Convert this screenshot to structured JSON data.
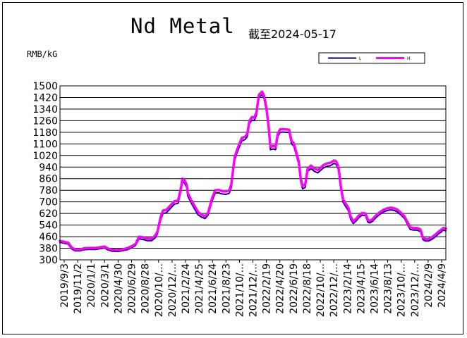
{
  "chart_data": {
    "type": "line",
    "title": "Nd Metal",
    "subtitle": "截至2024-05-17",
    "ylabel": "RMB/kG",
    "xlabel": "",
    "ylim": [
      300,
      1500
    ],
    "yticks": [
      300,
      380,
      460,
      540,
      620,
      700,
      780,
      860,
      940,
      1020,
      1100,
      1180,
      1260,
      1340,
      1420,
      1500
    ],
    "grid": true,
    "legend_position": "top-right",
    "x_tick_labels": [
      "2019/9/3",
      "2019/11/2",
      "2020/1/1",
      "2020/3/1",
      "2020/4/30",
      "2020/6/29",
      "2020/8/28",
      "2020/10/...",
      "2020/12/...",
      "2021/2/24",
      "2021/4/25",
      "2021/6/24",
      "2021/8/23",
      "2021/10/...",
      "2021/12/...",
      "2022/2/19",
      "2022/4/20",
      "2022/6/19",
      "2022/8/18",
      "2022/10/...",
      "2022/12/...",
      "2023/2/14",
      "2023/4/15",
      "2023/6/14",
      "2023/8/13",
      "2023/10/...",
      "2023/12/...",
      "2024/2/9",
      "2024/4/9"
    ],
    "series": [
      {
        "name": "L",
        "color": "#000080",
        "points": [
          [
            "2019-09-03",
            420
          ],
          [
            "2019-09-20",
            415
          ],
          [
            "2019-10-10",
            408
          ],
          [
            "2019-10-25",
            375
          ],
          [
            "2019-11-10",
            362
          ],
          [
            "2019-12-01",
            362
          ],
          [
            "2019-12-20",
            370
          ],
          [
            "2020-01-10",
            372
          ],
          [
            "2020-02-10",
            372
          ],
          [
            "2020-03-05",
            378
          ],
          [
            "2020-03-20",
            382
          ],
          [
            "2020-04-01",
            370
          ],
          [
            "2020-04-20",
            360
          ],
          [
            "2020-05-15",
            358
          ],
          [
            "2020-06-05",
            362
          ],
          [
            "2020-06-29",
            370
          ],
          [
            "2020-07-20",
            385
          ],
          [
            "2020-08-05",
            400
          ],
          [
            "2020-08-20",
            445
          ],
          [
            "2020-09-10",
            440
          ],
          [
            "2020-09-25",
            432
          ],
          [
            "2020-10-15",
            432
          ],
          [
            "2020-10-30",
            450
          ],
          [
            "2020-11-10",
            480
          ],
          [
            "2020-11-25",
            580
          ],
          [
            "2020-12-05",
            620
          ],
          [
            "2020-12-20",
            625
          ],
          [
            "2021-01-10",
            660
          ],
          [
            "2021-01-25",
            685
          ],
          [
            "2021-02-10",
            690
          ],
          [
            "2021-02-24",
            785
          ],
          [
            "2021-03-01",
            840
          ],
          [
            "2021-03-10",
            830
          ],
          [
            "2021-03-20",
            800
          ],
          [
            "2021-03-25",
            740
          ],
          [
            "2021-04-10",
            690
          ],
          [
            "2021-04-25",
            650
          ],
          [
            "2021-05-10",
            610
          ],
          [
            "2021-05-25",
            595
          ],
          [
            "2021-06-10",
            585
          ],
          [
            "2021-06-24",
            610
          ],
          [
            "2021-07-10",
            700
          ],
          [
            "2021-07-25",
            760
          ],
          [
            "2021-08-10",
            762
          ],
          [
            "2021-08-23",
            755
          ],
          [
            "2021-09-10",
            752
          ],
          [
            "2021-09-25",
            758
          ],
          [
            "2021-10-05",
            800
          ],
          [
            "2021-10-20",
            990
          ],
          [
            "2021-11-01",
            1045
          ],
          [
            "2021-11-10",
            1080
          ],
          [
            "2021-11-20",
            1120
          ],
          [
            "2021-12-05",
            1130
          ],
          [
            "2021-12-15",
            1150
          ],
          [
            "2021-12-25",
            1240
          ],
          [
            "2022-01-05",
            1265
          ],
          [
            "2022-01-15",
            1260
          ],
          [
            "2022-01-25",
            1300
          ],
          [
            "2022-02-05",
            1420
          ],
          [
            "2022-02-19",
            1440
          ],
          [
            "2022-02-28",
            1410
          ],
          [
            "2022-03-10",
            1330
          ],
          [
            "2022-03-20",
            1200
          ],
          [
            "2022-03-28",
            1060
          ],
          [
            "2022-04-10",
            1065
          ],
          [
            "2022-04-20",
            1060
          ],
          [
            "2022-04-30",
            1150
          ],
          [
            "2022-05-10",
            1180
          ],
          [
            "2022-05-25",
            1182
          ],
          [
            "2022-06-05",
            1180
          ],
          [
            "2022-06-19",
            1178
          ],
          [
            "2022-06-30",
            1100
          ],
          [
            "2022-07-10",
            1085
          ],
          [
            "2022-07-20",
            1030
          ],
          [
            "2022-08-01",
            960
          ],
          [
            "2022-08-10",
            840
          ],
          [
            "2022-08-18",
            790
          ],
          [
            "2022-08-30",
            800
          ],
          [
            "2022-09-10",
            910
          ],
          [
            "2022-09-25",
            930
          ],
          [
            "2022-10-10",
            910
          ],
          [
            "2022-10-25",
            900
          ],
          [
            "2022-11-05",
            915
          ],
          [
            "2022-11-20",
            935
          ],
          [
            "2022-12-05",
            945
          ],
          [
            "2022-12-20",
            950
          ],
          [
            "2023-01-05",
            965
          ],
          [
            "2023-01-15",
            960
          ],
          [
            "2023-01-25",
            920
          ],
          [
            "2023-02-05",
            780
          ],
          [
            "2023-02-14",
            700
          ],
          [
            "2023-02-25",
            670
          ],
          [
            "2023-03-10",
            640
          ],
          [
            "2023-03-20",
            580
          ],
          [
            "2023-04-01",
            550
          ],
          [
            "2023-04-15",
            570
          ],
          [
            "2023-04-25",
            590
          ],
          [
            "2023-05-10",
            608
          ],
          [
            "2023-05-25",
            605
          ],
          [
            "2023-06-05",
            560
          ],
          [
            "2023-06-14",
            555
          ],
          [
            "2023-06-25",
            565
          ],
          [
            "2023-07-10",
            590
          ],
          [
            "2023-07-25",
            610
          ],
          [
            "2023-08-13",
            630
          ],
          [
            "2023-08-30",
            640
          ],
          [
            "2023-09-15",
            645
          ],
          [
            "2023-10-01",
            640
          ],
          [
            "2023-10-15",
            630
          ],
          [
            "2023-10-30",
            610
          ],
          [
            "2023-11-15",
            585
          ],
          [
            "2023-11-30",
            540
          ],
          [
            "2023-12-10",
            510
          ],
          [
            "2023-12-25",
            505
          ],
          [
            "2024-01-10",
            505
          ],
          [
            "2024-01-25",
            495
          ],
          [
            "2024-02-05",
            440
          ],
          [
            "2024-02-15",
            430
          ],
          [
            "2024-03-01",
            430
          ],
          [
            "2024-03-15",
            440
          ],
          [
            "2024-04-01",
            460
          ],
          [
            "2024-04-15",
            480
          ],
          [
            "2024-04-25",
            490
          ],
          [
            "2024-05-05",
            505
          ],
          [
            "2024-05-17",
            500
          ]
        ]
      },
      {
        "name": "H",
        "color": "#ff00ff",
        "points": [
          [
            "2019-09-03",
            430
          ],
          [
            "2019-09-20",
            425
          ],
          [
            "2019-10-10",
            418
          ],
          [
            "2019-10-25",
            385
          ],
          [
            "2019-11-10",
            372
          ],
          [
            "2019-12-01",
            372
          ],
          [
            "2019-12-20",
            380
          ],
          [
            "2020-01-10",
            382
          ],
          [
            "2020-02-10",
            382
          ],
          [
            "2020-03-05",
            388
          ],
          [
            "2020-03-20",
            392
          ],
          [
            "2020-04-01",
            380
          ],
          [
            "2020-04-20",
            370
          ],
          [
            "2020-05-15",
            368
          ],
          [
            "2020-06-05",
            372
          ],
          [
            "2020-06-29",
            380
          ],
          [
            "2020-07-20",
            395
          ],
          [
            "2020-08-05",
            410
          ],
          [
            "2020-08-20",
            460
          ],
          [
            "2020-09-10",
            455
          ],
          [
            "2020-09-25",
            447
          ],
          [
            "2020-10-15",
            447
          ],
          [
            "2020-10-30",
            465
          ],
          [
            "2020-11-10",
            495
          ],
          [
            "2020-11-25",
            600
          ],
          [
            "2020-12-05",
            640
          ],
          [
            "2020-12-20",
            645
          ],
          [
            "2021-01-10",
            680
          ],
          [
            "2021-01-25",
            705
          ],
          [
            "2021-02-10",
            710
          ],
          [
            "2021-02-24",
            805
          ],
          [
            "2021-03-01",
            860
          ],
          [
            "2021-03-10",
            850
          ],
          [
            "2021-03-20",
            820
          ],
          [
            "2021-03-25",
            760
          ],
          [
            "2021-04-10",
            710
          ],
          [
            "2021-04-25",
            670
          ],
          [
            "2021-05-10",
            630
          ],
          [
            "2021-05-25",
            612
          ],
          [
            "2021-06-10",
            600
          ],
          [
            "2021-06-24",
            625
          ],
          [
            "2021-07-10",
            720
          ],
          [
            "2021-07-25",
            780
          ],
          [
            "2021-08-10",
            782
          ],
          [
            "2021-08-23",
            775
          ],
          [
            "2021-09-10",
            772
          ],
          [
            "2021-09-25",
            778
          ],
          [
            "2021-10-05",
            820
          ],
          [
            "2021-10-20",
            1010
          ],
          [
            "2021-11-01",
            1065
          ],
          [
            "2021-11-10",
            1100
          ],
          [
            "2021-11-20",
            1140
          ],
          [
            "2021-12-05",
            1150
          ],
          [
            "2021-12-15",
            1170
          ],
          [
            "2021-12-25",
            1260
          ],
          [
            "2022-01-05",
            1285
          ],
          [
            "2022-01-15",
            1280
          ],
          [
            "2022-01-25",
            1320
          ],
          [
            "2022-02-05",
            1440
          ],
          [
            "2022-02-19",
            1460
          ],
          [
            "2022-02-28",
            1430
          ],
          [
            "2022-03-10",
            1350
          ],
          [
            "2022-03-20",
            1220
          ],
          [
            "2022-03-28",
            1080
          ],
          [
            "2022-04-10",
            1085
          ],
          [
            "2022-04-20",
            1080
          ],
          [
            "2022-04-30",
            1170
          ],
          [
            "2022-05-10",
            1200
          ],
          [
            "2022-05-25",
            1202
          ],
          [
            "2022-06-05",
            1200
          ],
          [
            "2022-06-19",
            1198
          ],
          [
            "2022-06-30",
            1120
          ],
          [
            "2022-07-10",
            1105
          ],
          [
            "2022-07-20",
            1050
          ],
          [
            "2022-08-01",
            980
          ],
          [
            "2022-08-10",
            860
          ],
          [
            "2022-08-18",
            810
          ],
          [
            "2022-08-30",
            820
          ],
          [
            "2022-09-10",
            930
          ],
          [
            "2022-09-25",
            950
          ],
          [
            "2022-10-10",
            930
          ],
          [
            "2022-10-25",
            920
          ],
          [
            "2022-11-05",
            935
          ],
          [
            "2022-11-20",
            955
          ],
          [
            "2022-12-05",
            965
          ],
          [
            "2022-12-20",
            970
          ],
          [
            "2023-01-05",
            985
          ],
          [
            "2023-01-15",
            980
          ],
          [
            "2023-01-25",
            940
          ],
          [
            "2023-02-05",
            800
          ],
          [
            "2023-02-14",
            720
          ],
          [
            "2023-02-25",
            690
          ],
          [
            "2023-03-10",
            660
          ],
          [
            "2023-03-20",
            600
          ],
          [
            "2023-04-01",
            565
          ],
          [
            "2023-04-15",
            585
          ],
          [
            "2023-04-25",
            605
          ],
          [
            "2023-05-10",
            623
          ],
          [
            "2023-05-25",
            620
          ],
          [
            "2023-06-05",
            575
          ],
          [
            "2023-06-14",
            570
          ],
          [
            "2023-06-25",
            580
          ],
          [
            "2023-07-10",
            605
          ],
          [
            "2023-07-25",
            625
          ],
          [
            "2023-08-13",
            645
          ],
          [
            "2023-08-30",
            655
          ],
          [
            "2023-09-15",
            660
          ],
          [
            "2023-10-01",
            655
          ],
          [
            "2023-10-15",
            645
          ],
          [
            "2023-10-30",
            625
          ],
          [
            "2023-11-15",
            600
          ],
          [
            "2023-11-30",
            555
          ],
          [
            "2023-12-10",
            525
          ],
          [
            "2023-12-25",
            520
          ],
          [
            "2024-01-10",
            520
          ],
          [
            "2024-01-25",
            510
          ],
          [
            "2024-02-05",
            455
          ],
          [
            "2024-02-15",
            445
          ],
          [
            "2024-03-01",
            445
          ],
          [
            "2024-03-15",
            455
          ],
          [
            "2024-04-01",
            475
          ],
          [
            "2024-04-15",
            495
          ],
          [
            "2024-04-25",
            505
          ],
          [
            "2024-05-05",
            520
          ],
          [
            "2024-05-17",
            515
          ]
        ]
      }
    ]
  }
}
